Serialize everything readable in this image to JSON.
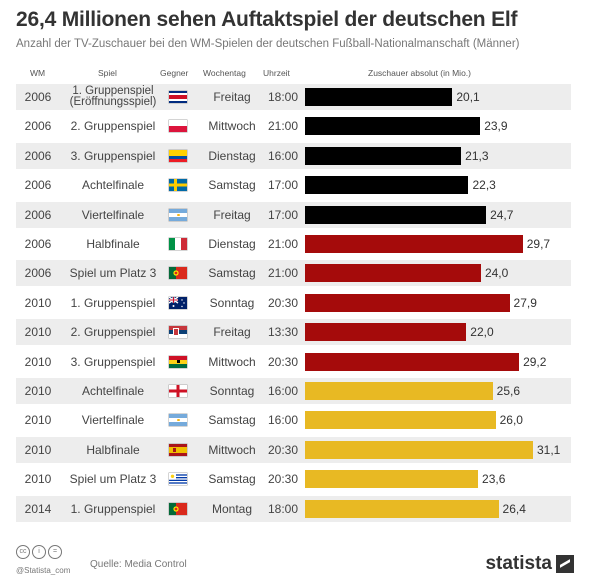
{
  "title": "26,4 Millionen sehen Auftaktspiel der deutschen Elf",
  "subtitle": "Anzahl der TV-Zuschauer bei den WM-Spielen der deutschen Fußball-Nationalmanschaft (Männer)",
  "headers": {
    "wm": "WM",
    "spiel": "Spiel",
    "gegner": "Gegner",
    "wochentag": "Wochentag",
    "uhrzeit": "Uhrzeit",
    "zuschauer": "Zuschauer absolut (in Mio.)"
  },
  "colors": {
    "2006": "#000000",
    "2010_group": "#a50b0b",
    "2010_ko": "#e8b923",
    "stripe": "#ededed"
  },
  "chart_data": {
    "type": "bar",
    "orientation": "horizontal",
    "title": "26,4 Millionen sehen Auftaktspiel der deutschen Elf",
    "subtitle": "Anzahl der TV-Zuschauer bei den WM-Spielen der deutschen Fußball-Nationalmanschaft (Männer)",
    "xlabel": "Zuschauer absolut (in Mio.)",
    "xlim": [
      0,
      31.1
    ],
    "grid": false,
    "rows": [
      {
        "wm": "2006",
        "spiel": "1. Gruppenspiel (Eröffnungsspiel)",
        "spiel_lines": [
          "1. Gruppenspiel",
          "(Eröffnungsspiel)"
        ],
        "gegner": "costa-rica-flag",
        "wochentag": "Freitag",
        "uhrzeit": "18:00",
        "value": 20.1,
        "label": "20,1",
        "color": "#000000"
      },
      {
        "wm": "2006",
        "spiel": "2. Gruppenspiel",
        "spiel_lines": [
          "2. Gruppenspiel"
        ],
        "gegner": "poland-flag",
        "wochentag": "Mittwoch",
        "uhrzeit": "21:00",
        "value": 23.9,
        "label": "23,9",
        "color": "#000000"
      },
      {
        "wm": "2006",
        "spiel": "3. Gruppenspiel",
        "spiel_lines": [
          "3. Gruppenspiel"
        ],
        "gegner": "ecuador-flag",
        "wochentag": "Dienstag",
        "uhrzeit": "16:00",
        "value": 21.3,
        "label": "21,3",
        "color": "#000000"
      },
      {
        "wm": "2006",
        "spiel": "Achtelfinale",
        "spiel_lines": [
          "Achtelfinale"
        ],
        "gegner": "sweden-flag",
        "wochentag": "Samstag",
        "uhrzeit": "17:00",
        "value": 22.3,
        "label": "22,3",
        "color": "#000000"
      },
      {
        "wm": "2006",
        "spiel": "Viertelfinale",
        "spiel_lines": [
          "Viertelfinale"
        ],
        "gegner": "argentina-flag",
        "wochentag": "Freitag",
        "uhrzeit": "17:00",
        "value": 24.7,
        "label": "24,7",
        "color": "#000000"
      },
      {
        "wm": "2006",
        "spiel": "Halbfinale",
        "spiel_lines": [
          "Halbfinale"
        ],
        "gegner": "italy-flag",
        "wochentag": "Dienstag",
        "uhrzeit": "21:00",
        "value": 29.7,
        "label": "29,7",
        "color": "#a50b0b"
      },
      {
        "wm": "2006",
        "spiel": "Spiel um Platz 3",
        "spiel_lines": [
          "Spiel um Platz 3"
        ],
        "gegner": "portugal-flag",
        "wochentag": "Samstag",
        "uhrzeit": "21:00",
        "value": 24.0,
        "label": "24,0",
        "color": "#a50b0b"
      },
      {
        "wm": "2010",
        "spiel": "1. Gruppenspiel",
        "spiel_lines": [
          "1. Gruppenspiel"
        ],
        "gegner": "australia-flag",
        "wochentag": "Sonntag",
        "uhrzeit": "20:30",
        "value": 27.9,
        "label": "27,9",
        "color": "#a50b0b"
      },
      {
        "wm": "2010",
        "spiel": "2. Gruppenspiel",
        "spiel_lines": [
          "2. Gruppenspiel"
        ],
        "gegner": "serbia-flag",
        "wochentag": "Freitag",
        "uhrzeit": "13:30",
        "value": 22.0,
        "label": "22,0",
        "color": "#a50b0b"
      },
      {
        "wm": "2010",
        "spiel": "3. Gruppenspiel",
        "spiel_lines": [
          "3. Gruppenspiel"
        ],
        "gegner": "ghana-flag",
        "wochentag": "Mittwoch",
        "uhrzeit": "20:30",
        "value": 29.2,
        "label": "29,2",
        "color": "#a50b0b"
      },
      {
        "wm": "2010",
        "spiel": "Achtelfinale",
        "spiel_lines": [
          "Achtelfinale"
        ],
        "gegner": "england-flag",
        "wochentag": "Sonntag",
        "uhrzeit": "16:00",
        "value": 25.6,
        "label": "25,6",
        "color": "#e8b923"
      },
      {
        "wm": "2010",
        "spiel": "Viertelfinale",
        "spiel_lines": [
          "Viertelfinale"
        ],
        "gegner": "argentina-flag",
        "wochentag": "Samstag",
        "uhrzeit": "16:00",
        "value": 26.0,
        "label": "26,0",
        "color": "#e8b923"
      },
      {
        "wm": "2010",
        "spiel": "Halbfinale",
        "spiel_lines": [
          "Halbfinale"
        ],
        "gegner": "spain-flag",
        "wochentag": "Mittwoch",
        "uhrzeit": "20:30",
        "value": 31.1,
        "label": "31,1",
        "color": "#e8b923"
      },
      {
        "wm": "2010",
        "spiel": "Spiel um Platz 3",
        "spiel_lines": [
          "Spiel um Platz 3"
        ],
        "gegner": "uruguay-flag",
        "wochentag": "Samstag",
        "uhrzeit": "20:30",
        "value": 23.6,
        "label": "23,6",
        "color": "#e8b923"
      },
      {
        "wm": "2014",
        "spiel": "1. Gruppenspiel",
        "spiel_lines": [
          "1. Gruppenspiel"
        ],
        "gegner": "portugal-flag",
        "wochentag": "Montag",
        "uhrzeit": "18:00",
        "value": 26.4,
        "label": "26,4",
        "color": "#e8b923"
      }
    ]
  },
  "footer": {
    "cc_icons": [
      "cc-icon",
      "by-icon",
      "nd-icon"
    ],
    "handle": "@Statista_com",
    "source": "Quelle: Media Control",
    "brand": "statista"
  }
}
